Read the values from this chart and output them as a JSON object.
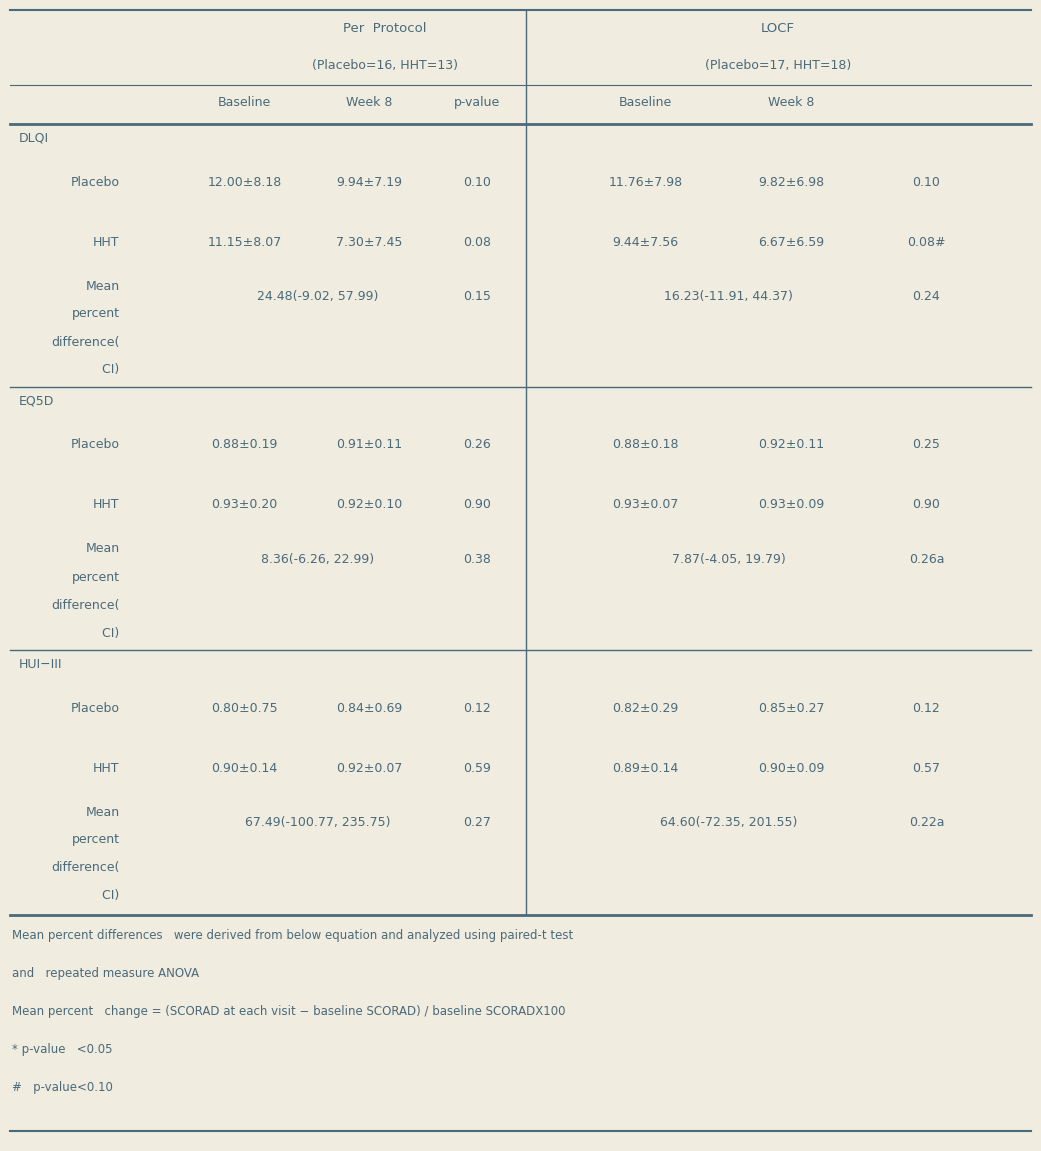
{
  "bg_color": "#f0ece0",
  "text_color": "#4a6a7a",
  "header1": "Per  Protocol",
  "header1_sub": "(Placebo=16, HHT=13)",
  "header2": "LOCF",
  "header2_sub": "(Placebo=17, HHT=18)",
  "footnotes": [
    "Mean percent differences   were derived from below equation and analyzed using paired-t test",
    "and   repeated measure ANOVA",
    "Mean percent   change = (SCORAD at each visit − baseline SCORAD) / baseline SCORADX100",
    "* p-value   <0.05",
    "#   p-value<0.10"
  ],
  "sections": [
    {
      "name": "DLQI",
      "rows": [
        {
          "label": "Placebo",
          "pp_base": "12.00±8.18",
          "pp_w8": "9.94±7.19",
          "pp_p": "0.10",
          "lf_base": "11.76±7.98",
          "lf_w8": "9.82±6.98",
          "lf_p": "0.10"
        },
        {
          "label": "HHT",
          "pp_base": "11.15±8.07",
          "pp_w8": "7.30±7.45",
          "pp_p": "0.08",
          "lf_base": "9.44±7.56",
          "lf_w8": "6.67±6.59",
          "lf_p": "0.08#"
        },
        {
          "label": "Mean\npercent\ndifference(\n    CI)",
          "pp_base": "24.48(-9.02, 57.99)",
          "pp_p": "0.15",
          "lf_base": "16.23(-11.91, 44.37)",
          "lf_p": "0.24",
          "multiline": true
        }
      ]
    },
    {
      "name": "EQ5D",
      "rows": [
        {
          "label": "Placebo",
          "pp_base": "0.88±0.19",
          "pp_w8": "0.91±0.11",
          "pp_p": "0.26",
          "lf_base": "0.88±0.18",
          "lf_w8": "0.92±0.11",
          "lf_p": "0.25"
        },
        {
          "label": "HHT",
          "pp_base": "0.93±0.20",
          "pp_w8": "0.92±0.10",
          "pp_p": "0.90",
          "lf_base": "0.93±0.07",
          "lf_w8": "0.93±0.09",
          "lf_p": "0.90"
        },
        {
          "label": "Mean\npercent\ndifference(\n    CI)",
          "pp_base": "8.36(-6.26, 22.99)",
          "pp_p": "0.38",
          "lf_base": "7.87(-4.05, 19.79)",
          "lf_p": "0.26a",
          "multiline": true
        }
      ]
    },
    {
      "name": "HUI−III",
      "rows": [
        {
          "label": "Placebo",
          "pp_base": "0.80±0.75",
          "pp_w8": "0.84±0.69",
          "pp_p": "0.12",
          "lf_base": "0.82±0.29",
          "lf_w8": "0.85±0.27",
          "lf_p": "0.12"
        },
        {
          "label": "HHT",
          "pp_base": "0.90±0.14",
          "pp_w8": "0.92±0.07",
          "pp_p": "0.59",
          "lf_base": "0.89±0.14",
          "lf_w8": "0.90±0.09",
          "lf_p": "0.57"
        },
        {
          "label": "Mean\npercent\ndifference(\n    CI)",
          "pp_base": "67.49(-100.77, 235.75)",
          "pp_p": "0.27",
          "lf_base": "64.60(-72.35, 201.55)",
          "lf_p": "0.22a",
          "multiline": true
        }
      ]
    }
  ]
}
